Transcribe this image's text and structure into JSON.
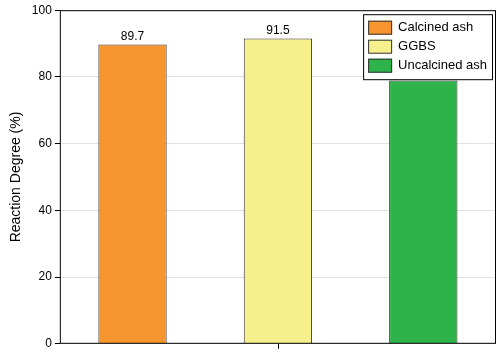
{
  "chart_data": {
    "type": "bar",
    "y_label": "Reaction Degree (%)",
    "categories": [
      null
    ],
    "series": [
      {
        "name": "Calcined ash",
        "color": "#f7962f",
        "values": [
          89.7
        ]
      },
      {
        "name": "GGBS",
        "color": "#f6f08c",
        "values": [
          91.5
        ]
      },
      {
        "name": "Uncalcined ash",
        "color": "#2db34a",
        "values": [
          78.9
        ]
      }
    ],
    "ylim": [
      0,
      100
    ],
    "yticks": [
      0,
      20,
      40,
      60,
      80,
      100
    ],
    "grid": true,
    "legend": "top-right",
    "data_labels": true,
    "tick_labels": "y"
  }
}
